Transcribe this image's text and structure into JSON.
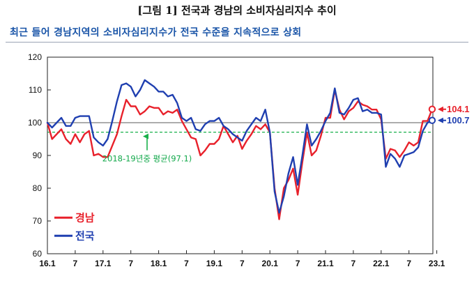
{
  "figure": {
    "title": "[그림 1] 전국과 경남의 소비자심리지수 추이",
    "subtitle": "최근 들어 경남지역의 소비자심리지수가 전국 수준을 지속적으로 상회"
  },
  "chart_data": {
    "type": "line",
    "title": "",
    "xlabel": "",
    "ylabel": "",
    "ylim": [
      60,
      120
    ],
    "yticks": [
      60,
      70,
      80,
      90,
      100,
      110,
      120
    ],
    "x_start": "2016-01",
    "x_tick_labels": [
      "16.1",
      "7",
      "17.1",
      "7",
      "18.1",
      "7",
      "19.1",
      "7",
      "20.1",
      "7",
      "21.1",
      "7",
      "22.1",
      "7",
      "23.1"
    ],
    "grid": false,
    "legend_position": "bottom-left",
    "reference_lines": [
      {
        "value": 100,
        "style": "solid",
        "color": "#7a7a7a",
        "label": ""
      },
      {
        "value": 97.1,
        "style": "dashed",
        "color": "#19b04b",
        "label": "2018-19년중 평균(97.1)"
      }
    ],
    "series": [
      {
        "name": "경남",
        "color": "#e8212b",
        "end_label": "104.1",
        "values": [
          100.0,
          95.0,
          96.5,
          98.0,
          95.0,
          93.5,
          96.5,
          94.0,
          96.5,
          97.5,
          90.0,
          90.5,
          89.5,
          89.5,
          93.0,
          96.5,
          102.0,
          107.0,
          105.0,
          105.0,
          102.5,
          103.5,
          105.0,
          104.5,
          104.5,
          102.5,
          103.5,
          103.0,
          104.0,
          100.5,
          98.0,
          95.5,
          95.0,
          90.0,
          91.5,
          93.5,
          93.5,
          95.0,
          99.0,
          96.5,
          94.0,
          96.0,
          92.0,
          94.5,
          96.5,
          99.0,
          98.0,
          99.5,
          97.0,
          80.0,
          70.5,
          80.0,
          82.5,
          86.0,
          78.0,
          88.0,
          97.0,
          90.0,
          91.5,
          96.0,
          101.5,
          101.5,
          110.0,
          104.0,
          101.0,
          103.5,
          104.5,
          106.5,
          105.5,
          105.0,
          104.0,
          104.0,
          101.0,
          89.0,
          92.0,
          91.5,
          89.5,
          91.5,
          94.0,
          93.0,
          94.0,
          100.5,
          100.5,
          104.1
        ]
      },
      {
        "name": "전국",
        "color": "#1f3fb0",
        "end_label": "100.7",
        "values": [
          100.0,
          98.5,
          100.0,
          101.5,
          99.0,
          99.0,
          101.5,
          102.0,
          102.0,
          102.0,
          95.5,
          94.0,
          93.0,
          95.0,
          100.5,
          106.5,
          111.5,
          112.0,
          111.0,
          108.0,
          110.0,
          113.0,
          112.0,
          111.0,
          109.5,
          109.5,
          108.0,
          108.5,
          106.0,
          101.5,
          100.5,
          101.5,
          98.0,
          97.5,
          99.5,
          100.5,
          100.5,
          101.5,
          99.0,
          98.0,
          96.5,
          95.5,
          94.5,
          97.5,
          99.5,
          101.5,
          100.5,
          104.0,
          97.0,
          79.0,
          72.5,
          77.5,
          84.5,
          89.5,
          81.0,
          90.0,
          99.5,
          93.0,
          95.0,
          97.5,
          100.5,
          103.0,
          110.5,
          103.0,
          102.5,
          104.5,
          107.0,
          107.5,
          103.5,
          104.0,
          103.0,
          103.0,
          102.5,
          86.5,
          90.5,
          89.0,
          86.5,
          90.0,
          90.5,
          91.0,
          92.5,
          97.5,
          100.0,
          100.7
        ]
      }
    ]
  }
}
